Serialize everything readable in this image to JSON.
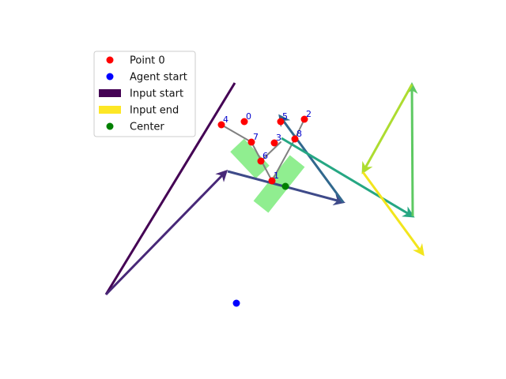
{
  "chart_data": {
    "type": "scatter",
    "title": "",
    "xlabel": "",
    "ylabel": "",
    "axes_visible": false,
    "xlim": [
      0,
      640
    ],
    "ylim": [
      480,
      0
    ],
    "legend": {
      "placement": "upper-left",
      "entries": [
        {
          "label": "Point 0",
          "kind": "marker",
          "color": "#ff0000"
        },
        {
          "label": "Agent start",
          "kind": "marker",
          "color": "#0000ff"
        },
        {
          "label": "Input start",
          "kind": "patch",
          "color": "#440154"
        },
        {
          "label": "Input end",
          "kind": "patch",
          "color": "#fde725"
        },
        {
          "label": "Center",
          "kind": "marker",
          "color": "#008000"
        }
      ]
    },
    "region": {
      "color": "#90ee90",
      "bands": [
        {
          "from": [
            330,
            218
          ],
          "to": [
            376,
            276
          ],
          "half_width": 12
        },
        {
          "from": [
            332,
            262
          ],
          "to": [
            300,
            296
          ],
          "half_width": 12
        }
      ]
    },
    "points": [
      {
        "label": "0",
        "x": 309,
        "y": 326
      },
      {
        "label": "1",
        "x": 344,
        "y": 251
      },
      {
        "label": "2",
        "x": 385,
        "y": 329
      },
      {
        "label": "3",
        "x": 347,
        "y": 299
      },
      {
        "label": "4",
        "x": 280,
        "y": 322
      },
      {
        "label": "5",
        "x": 355,
        "y": 326
      },
      {
        "label": "6",
        "x": 330,
        "y": 276
      },
      {
        "label": "7",
        "x": 318,
        "y": 300
      },
      {
        "label": "8",
        "x": 373,
        "y": 304
      }
    ],
    "point_color": "#ff0000",
    "point_label_color": "#0000cc",
    "path": {
      "color": "#808080",
      "segments": [
        [
          280,
          322,
          318,
          300
        ],
        [
          318,
          300,
          344,
          251
        ],
        [
          344,
          251,
          373,
          304
        ],
        [
          373,
          304,
          385,
          329
        ],
        [
          330,
          276,
          355,
          300
        ]
      ]
    },
    "agent_start": {
      "x": 299,
      "y": 96,
      "color": "#0000ff"
    },
    "center": {
      "x": 361,
      "y": 244,
      "color": "#008000"
    },
    "input_strokes": [
      {
        "x1": 297,
        "y1": 375,
        "x2": 134,
        "y2": 107,
        "color": "#440154",
        "arrow": false
      },
      {
        "x1": 134,
        "y1": 107,
        "x2": 286,
        "y2": 263,
        "color": "#482878",
        "arrow": true
      },
      {
        "x1": 288,
        "y1": 263,
        "x2": 434,
        "y2": 224,
        "color": "#3e4a89",
        "arrow": true
      },
      {
        "x1": 434,
        "y1": 224,
        "x2": 354,
        "y2": 333,
        "color": "#31688e",
        "arrow": true
      },
      {
        "x1": 356,
        "y1": 305,
        "x2": 522,
        "y2": 206,
        "color": "#26a783",
        "arrow": true
      },
      {
        "x1": 522,
        "y1": 206,
        "x2": 521,
        "y2": 373,
        "color": "#5ec962",
        "arrow": true
      },
      {
        "x1": 521,
        "y1": 373,
        "x2": 459,
        "y2": 262,
        "color": "#addc30",
        "arrow": true
      },
      {
        "x1": 459,
        "y1": 262,
        "x2": 535,
        "y2": 158,
        "color": "#f2e51d",
        "arrow": true
      }
    ]
  }
}
